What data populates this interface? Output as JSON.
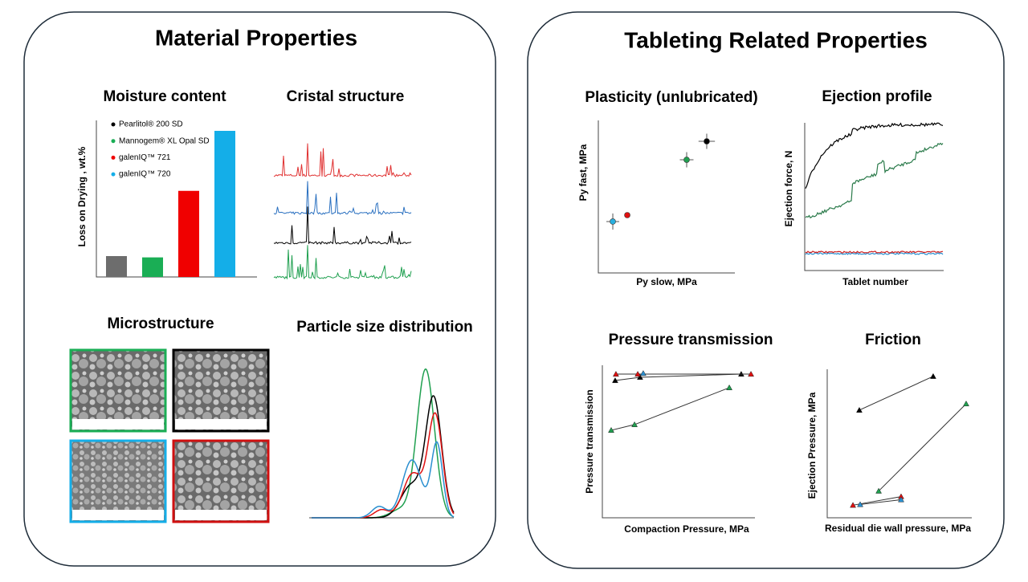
{
  "panels": {
    "left_title": "Material Properties",
    "right_title": "Tableting Related Properties",
    "cristal_title": "Cristal structure",
    "microstructure_title": "Microstructure",
    "psd_title": "Particle size distribution",
    "ejection_profile": {
      "title": "Ejection profile",
      "x_label": "Tablet number",
      "y_label": "Ejection force, N"
    }
  },
  "chart_data": [
    {
      "type": "bar",
      "title": "Moisture content",
      "y_label": "Loss on Drying , wt.%",
      "categories": [
        null,
        null,
        null,
        null
      ],
      "values": [
        0.8,
        0.75,
        3.3,
        5.6
      ],
      "colors": [
        "#6d6d6d",
        "#1aae55",
        "#f00000",
        "#14aee8"
      ],
      "ylim": [
        0,
        6
      ],
      "legend": [
        {
          "name": "Pearlitol® 200 SD",
          "color": "#000000"
        },
        {
          "name": "Mannogem® XL Opal SD",
          "color": "#1aae55"
        },
        {
          "name": "galenIQ™ 721",
          "color": "#f00000"
        },
        {
          "name": "galenIQ™ 720",
          "color": "#14aee8"
        }
      ]
    },
    {
      "type": "scatter",
      "title": "Plasticity (unlubricated)",
      "x_label": "Py slow, MPa",
      "y_label": "Py fast, MPa",
      "xlim": [
        0,
        10
      ],
      "ylim": [
        0,
        10
      ],
      "x": [
        1.06,
        2.12,
        6.47,
        7.94
      ],
      "values": [
        3.37,
        3.79,
        7.42,
        8.63
      ],
      "xerr": [
        0.47,
        null,
        0.5,
        0.6
      ],
      "yerr": [
        0.53,
        null,
        0.5,
        0.5
      ],
      "colors": [
        "#2ab0e0",
        "#e01010",
        "#20a050",
        "#000000"
      ]
    },
    {
      "type": "line",
      "title": "Pressure transmission",
      "x_label": "Compaction Pressure, MPa",
      "y_label": "Pressure transmission",
      "xlim": [
        0,
        10
      ],
      "ylim": [
        0,
        10
      ],
      "line_color": "#333333",
      "series": [
        {
          "color": "#000000",
          "x": [
            0.84,
            2.47,
            9.1
          ],
          "values": [
            9.0,
            9.21,
            9.42
          ]
        },
        {
          "color": "#e01010",
          "x": [
            0.89,
            2.32,
            9.74
          ],
          "values": [
            9.42,
            9.42,
            9.42
          ]
        },
        {
          "color": "#2a8fd0",
          "x": [
            2.68
          ],
          "values": [
            9.47
          ]
        },
        {
          "color": "#20a050",
          "x": [
            0.58,
            2.11,
            8.32
          ],
          "values": [
            5.74,
            6.11,
            8.53
          ]
        }
      ]
    },
    {
      "type": "line",
      "title": "Friction",
      "x_label": "Residual die wall pressure, MPa",
      "y_label": "Ejection Pressure, MPa",
      "xlim": [
        0,
        10
      ],
      "ylim": [
        0,
        10.5
      ],
      "line_color": "#333333",
      "series": [
        {
          "color": "#000000",
          "x": [
            2.22,
            7.33
          ],
          "values": [
            7.61,
            10.0
          ]
        },
        {
          "color": "#20a050",
          "x": [
            3.56,
            9.61
          ],
          "values": [
            1.89,
            8.06
          ]
        },
        {
          "color": "#e01010",
          "x": [
            1.78,
            5.11
          ],
          "values": [
            0.89,
            1.5
          ]
        },
        {
          "color": "#2a8fd0",
          "x": [
            2.28,
            5.11
          ],
          "values": [
            0.94,
            1.28
          ]
        }
      ]
    }
  ]
}
